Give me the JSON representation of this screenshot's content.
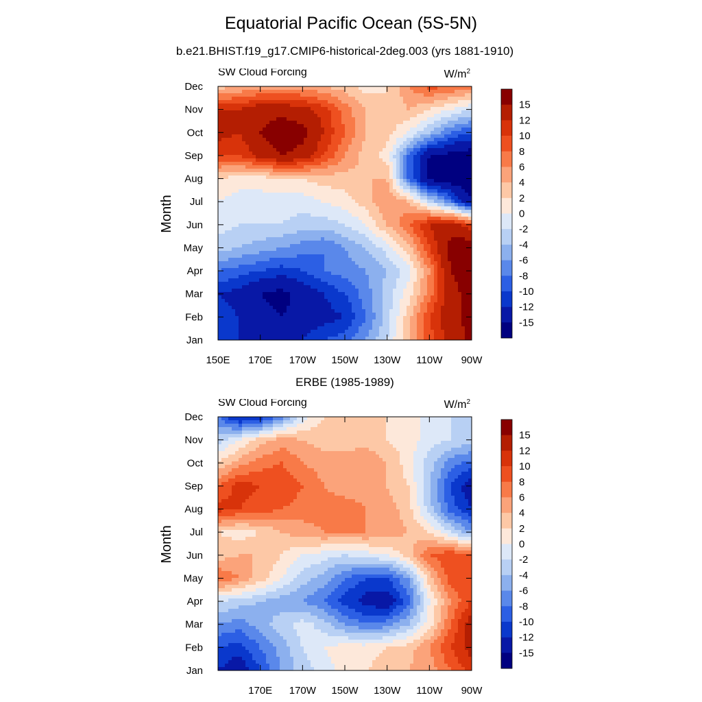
{
  "title": "Equatorial Pacific Ocean (5S-5N)",
  "subtitle": "b.e21.BHIST.f19_g17.CMIP6-historical-2deg.003 (yrs 1881-1910)",
  "colorbar": {
    "labels": [
      "15",
      "12",
      "10",
      "8",
      "6",
      "4",
      "2",
      "0",
      "-2",
      "-4",
      "-6",
      "-8",
      "-10",
      "-12",
      "-15"
    ],
    "colors": [
      "#880000",
      "#b41e02",
      "#d8330a",
      "#ee5020",
      "#f87a48",
      "#fba37a",
      "#fdc8a6",
      "#fde8da",
      "#dde8f8",
      "#b8d0f4",
      "#8cb0ee",
      "#5a88ea",
      "#2c5fe4",
      "#0a38cc",
      "#0818a6",
      "#000080"
    ]
  },
  "chart_data": [
    {
      "type": "heatmap",
      "name": "model",
      "variable": "SW Cloud Forcing",
      "units": "W/m",
      "units_sup": "2",
      "title": "",
      "ylabel": "Month",
      "yticks": [
        "Jan",
        "Feb",
        "Mar",
        "Apr",
        "May",
        "Jun",
        "Jul",
        "Aug",
        "Sep",
        "Oct",
        "Nov",
        "Dec"
      ],
      "xticks": [
        "150E",
        "170E",
        "170W",
        "150W",
        "130W",
        "110W",
        "90W"
      ],
      "x_range": [
        "150E",
        "90W"
      ],
      "levels": [
        -15,
        -12,
        -10,
        -8,
        -6,
        -4,
        -2,
        0,
        2,
        4,
        6,
        8,
        10,
        12,
        15
      ],
      "grid_lon": [
        "150E",
        "160E",
        "170E",
        "180",
        "170W",
        "160W",
        "150W",
        "140W",
        "130W",
        "120W",
        "110W",
        "100W",
        "90W"
      ],
      "values": [
        [
          -10,
          -12,
          -13,
          -13,
          -12,
          -10,
          -9,
          -6,
          -2,
          4,
          9,
          13,
          16
        ],
        [
          -11,
          -12,
          -14,
          -15,
          -14,
          -13,
          -12,
          -8,
          -3,
          3,
          10,
          14,
          16
        ],
        [
          -12,
          -13,
          -15,
          -16,
          -14,
          -12,
          -10,
          -7,
          -3,
          1,
          7,
          14,
          16
        ],
        [
          -8,
          -9,
          -10,
          -11,
          -10,
          -8,
          -7,
          -6,
          -4,
          -1,
          6,
          15,
          17
        ],
        [
          -3,
          -4,
          -5,
          -6,
          -7,
          -8,
          -6,
          -4,
          -1,
          3,
          10,
          16,
          18
        ],
        [
          -1,
          -2,
          -2,
          -2,
          -3,
          -3,
          -2,
          0,
          4,
          8,
          12,
          14,
          10
        ],
        [
          0,
          -1,
          -1,
          -1,
          -1,
          0,
          1,
          3,
          6,
          4,
          -2,
          -8,
          -15
        ],
        [
          2,
          1,
          1,
          2,
          2,
          3,
          3,
          4,
          4,
          -8,
          -16,
          -17,
          -17
        ],
        [
          10,
          10,
          13,
          15,
          14,
          10,
          6,
          3,
          1,
          -8,
          -15,
          -16,
          -17
        ],
        [
          13,
          12,
          15,
          17,
          16,
          12,
          8,
          4,
          3,
          0,
          -4,
          -8,
          -10
        ],
        [
          12,
          12,
          14,
          14,
          13,
          11,
          7,
          4,
          2,
          4,
          2,
          0,
          -2
        ],
        [
          3,
          4,
          5,
          5,
          5,
          4,
          3,
          1,
          2,
          6,
          9,
          8,
          7
        ]
      ]
    },
    {
      "type": "heatmap",
      "name": "obs",
      "variable": "SW Cloud Forcing",
      "units": "W/m",
      "units_sup": "2",
      "title": "ERBE (1985-1989)",
      "ylabel": "Month",
      "yticks": [
        "Jan",
        "Feb",
        "Mar",
        "Apr",
        "May",
        "Jun",
        "Jul",
        "Aug",
        "Sep",
        "Oct",
        "Nov",
        "Dec"
      ],
      "xticks": [
        "170E",
        "170W",
        "150W",
        "130W",
        "110W",
        "90W"
      ],
      "x_range": [
        "150E",
        "90W"
      ],
      "levels": [
        -15,
        -12,
        -10,
        -8,
        -6,
        -4,
        -2,
        0,
        2,
        4,
        6,
        8,
        10,
        12,
        15
      ],
      "grid_lon": [
        "150E",
        "160E",
        "170E",
        "180",
        "170W",
        "160W",
        "150W",
        "140W",
        "130W",
        "120W",
        "110W",
        "100W",
        "90W"
      ],
      "values": [
        [
          -12,
          -14,
          -10,
          -6,
          -3,
          -1,
          1,
          2,
          3,
          4,
          5,
          8,
          11
        ],
        [
          -10,
          -11,
          -8,
          -5,
          -2,
          0,
          1,
          1,
          2,
          3,
          6,
          10,
          13
        ],
        [
          -6,
          -7,
          -5,
          -3,
          -1,
          -3,
          -6,
          -8,
          -7,
          -4,
          1,
          8,
          14
        ],
        [
          -2,
          -3,
          -4,
          -5,
          -6,
          -8,
          -11,
          -13,
          -14,
          -9,
          0,
          6,
          10
        ],
        [
          8,
          6,
          3,
          0,
          -3,
          -5,
          -8,
          -10,
          -10,
          -6,
          3,
          9,
          10
        ],
        [
          3,
          4,
          4,
          2,
          0,
          -1,
          -2,
          -1,
          0,
          3,
          8,
          10,
          8
        ],
        [
          2,
          1,
          2,
          4,
          5,
          6,
          6,
          6,
          5,
          4,
          2,
          -2,
          -6
        ],
        [
          11,
          10,
          9,
          8,
          7,
          7,
          7,
          6,
          5,
          3,
          -3,
          -9,
          -12
        ],
        [
          8,
          11,
          10,
          10,
          8,
          6,
          5,
          5,
          4,
          2,
          -4,
          -10,
          -14
        ],
        [
          2,
          5,
          7,
          8,
          6,
          5,
          5,
          6,
          4,
          1,
          -3,
          -7,
          -9
        ],
        [
          -3,
          0,
          3,
          5,
          4,
          3,
          3,
          3,
          2,
          1,
          -1,
          -2,
          -3
        ],
        [
          -8,
          -13,
          -12,
          -7,
          -1,
          2,
          3,
          3,
          2,
          1,
          -1,
          -2,
          -3
        ]
      ]
    }
  ]
}
